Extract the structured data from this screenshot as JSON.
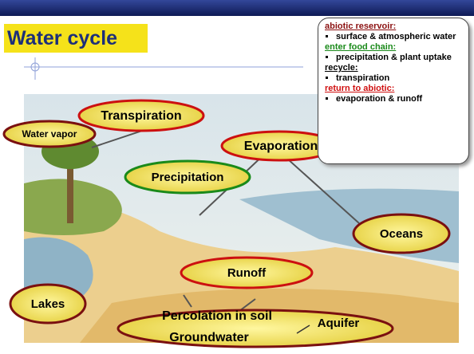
{
  "slide": {
    "title": "Water cycle",
    "labels": {
      "transpiration": "Transpiration",
      "water_vapor": "Water vapor",
      "evaporation": "Evaporation",
      "precipitation": "Precipitation",
      "oceans": "Oceans",
      "runoff": "Runoff",
      "lakes": "Lakes",
      "percolation": "Percolation in soil",
      "groundwater": "Groundwater",
      "aquifer": "Aquifer"
    },
    "callout": {
      "sections": [
        {
          "heading": "abiotic reservoir:",
          "color": "#8b1010",
          "items": [
            "surface & atmospheric water"
          ]
        },
        {
          "heading": "enter food chain:",
          "color": "#1a8a1a",
          "items": [
            "precipitation & plant uptake"
          ]
        },
        {
          "heading": "recycle:",
          "color": "#000000",
          "items": [
            "transpiration"
          ]
        },
        {
          "heading": "return to abiotic:",
          "color": "#d01010",
          "items": [
            "evaporation & runoff"
          ]
        }
      ]
    }
  }
}
